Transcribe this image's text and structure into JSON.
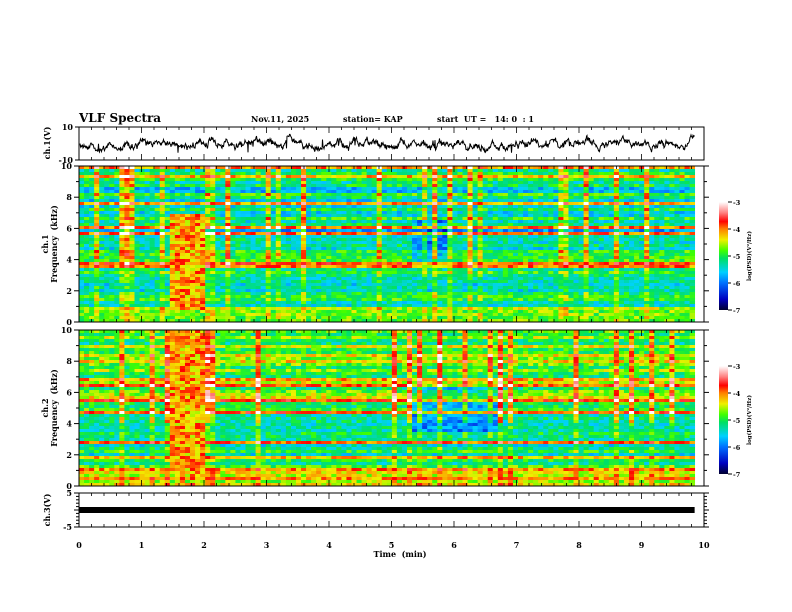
{
  "header": {
    "title": "VLF Spectra",
    "date": "Nov.11, 2025",
    "station": "station= KAP",
    "start_ut": "start  UT =   14: 0  : 1"
  },
  "chart_data": [
    {
      "type": "line",
      "name": "ch1-waveform",
      "ylabel": "ch.1(V)",
      "ylim": [
        -10,
        10
      ],
      "ytick_labels": [
        "10",
        "-10"
      ],
      "xlim": [
        0,
        10
      ],
      "data_end_min": 9.85
    },
    {
      "type": "heatmap",
      "name": "ch1-spectrogram",
      "ylabel_line1": "ch.1",
      "ylabel_line2": "Frequency  (kHz)",
      "ylim": [
        0,
        10
      ],
      "ytick_labels": [
        "0",
        "2",
        "4",
        "6",
        "8",
        "10"
      ],
      "xlim": [
        0,
        10
      ],
      "colorbar": {
        "label": "log(PSD)(V²/Hz)",
        "range": [
          -7,
          -3
        ],
        "tick_labels": [
          "-3",
          "-4",
          "-5",
          "-6",
          "-7"
        ]
      },
      "features": {
        "broadband_burst_min": [
          1.42,
          2.0
        ],
        "quiet_region_min": [
          5.3,
          6.0
        ]
      }
    },
    {
      "type": "heatmap",
      "name": "ch2-spectrogram",
      "ylabel_line1": "ch.2",
      "ylabel_line2": "Frequency  (kHz)",
      "ylim": [
        0,
        10
      ],
      "ytick_labels": [
        "0",
        "2",
        "4",
        "6",
        "8",
        "10"
      ],
      "xlim": [
        0,
        10
      ],
      "colorbar": {
        "label": "log(PSD)(V²/Hz)",
        "range": [
          -7,
          -3
        ],
        "tick_labels": [
          "-3",
          "-4",
          "-5",
          "-6",
          "-7"
        ]
      },
      "features": {
        "broadband_burst_min": [
          1.42,
          2.0
        ],
        "quiet_region_min": [
          5.3,
          6.7
        ]
      }
    },
    {
      "type": "line",
      "name": "ch3-waveform",
      "ylabel": "ch.3(V)",
      "ylim": [
        -5,
        5
      ],
      "ytick_labels": [
        "5",
        "-5"
      ],
      "xlim": [
        0,
        10
      ],
      "constant_value": 0,
      "data_end_min": 9.85
    }
  ],
  "xaxis": {
    "label": "Time  (min)",
    "tick_labels": [
      "0",
      "1",
      "2",
      "3",
      "4",
      "5",
      "6",
      "7",
      "8",
      "9",
      "10"
    ]
  },
  "colors": {
    "axis": "#000000",
    "background": "#ffffff"
  }
}
